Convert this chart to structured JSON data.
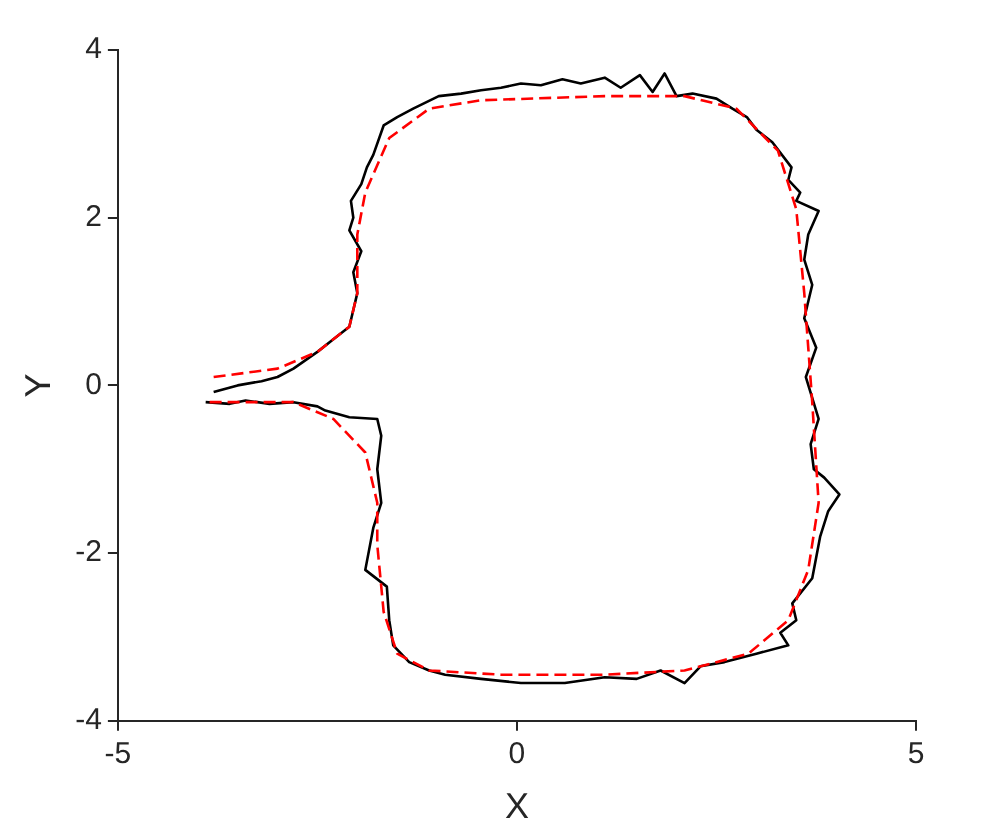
{
  "chart_data": {
    "type": "line",
    "xlabel": "X",
    "ylabel": "Y",
    "xlim": [
      -5,
      5
    ],
    "xticks": [
      -5,
      0,
      5
    ],
    "ylim": [
      -4,
      4
    ],
    "yticks": [
      -4,
      -2,
      0,
      2,
      4
    ],
    "grid": false,
    "legend": false,
    "marker": "none",
    "series": [
      {
        "color": "#000000",
        "line_style": "solid",
        "x": [
          -3.8,
          -3.5,
          -3.2,
          -3.0,
          -2.8,
          -2.5,
          -2.3,
          -2.1,
          -2.0,
          -2.05,
          -1.95,
          -2.1,
          -2.05,
          -2.08,
          -1.95,
          -1.88,
          -1.8,
          -1.67,
          -1.5,
          -1.3,
          -0.98,
          -0.7,
          -0.45,
          -0.2,
          0.05,
          0.3,
          0.57,
          0.8,
          1.1,
          1.3,
          1.54,
          1.7,
          1.85,
          2.0,
          2.2,
          2.5,
          2.7,
          2.88,
          3.0,
          3.2,
          3.44,
          3.4,
          3.55,
          3.5,
          3.78,
          3.65,
          3.6,
          3.7,
          3.6,
          3.75,
          3.62,
          3.78,
          3.68,
          3.72,
          3.85,
          4.04,
          3.9,
          3.8,
          3.7,
          3.45,
          3.5,
          3.3,
          3.4,
          3.0,
          2.6,
          2.3,
          2.1,
          1.8,
          1.5,
          1.1,
          0.6,
          0.05,
          -0.45,
          -0.9,
          -1.1,
          -1.35,
          -1.55,
          -1.6,
          -1.63,
          -1.9,
          -1.8,
          -1.7,
          -1.75,
          -1.7,
          -1.75,
          -2.1,
          -2.4,
          -2.5,
          -2.8,
          -3.1,
          -3.4,
          -3.6,
          -3.9
        ],
        "values": [
          -0.08,
          0.0,
          0.05,
          0.1,
          0.2,
          0.4,
          0.55,
          0.7,
          1.1,
          1.35,
          1.6,
          1.85,
          2.0,
          2.2,
          2.4,
          2.6,
          2.75,
          3.1,
          3.2,
          3.3,
          3.45,
          3.48,
          3.52,
          3.55,
          3.6,
          3.58,
          3.65,
          3.6,
          3.67,
          3.55,
          3.7,
          3.5,
          3.72,
          3.45,
          3.48,
          3.42,
          3.3,
          3.2,
          3.05,
          2.9,
          2.6,
          2.45,
          2.3,
          2.2,
          2.08,
          1.8,
          1.5,
          1.2,
          0.8,
          0.45,
          0.1,
          -0.4,
          -0.7,
          -1.0,
          -1.1,
          -1.3,
          -1.5,
          -1.8,
          -2.3,
          -2.6,
          -2.8,
          -2.95,
          -3.1,
          -3.2,
          -3.3,
          -3.35,
          -3.55,
          -3.4,
          -3.5,
          -3.48,
          -3.55,
          -3.55,
          -3.5,
          -3.45,
          -3.4,
          -3.3,
          -3.1,
          -2.8,
          -2.4,
          -2.2,
          -1.7,
          -1.4,
          -1.0,
          -0.6,
          -0.4,
          -0.38,
          -0.3,
          -0.25,
          -0.2,
          -0.22,
          -0.18,
          -0.22,
          -0.2
        ]
      },
      {
        "color": "#ff0000",
        "line_style": "dashed",
        "x": [
          -3.8,
          -3.0,
          -2.5,
          -2.1,
          -2.0,
          -2.0,
          -1.9,
          -1.6,
          -1.1,
          -0.46,
          1.1,
          2.1,
          2.75,
          3.27,
          3.5,
          3.6,
          3.7,
          3.78,
          3.65,
          3.4,
          2.9,
          2.1,
          1.1,
          -0.2,
          -1.1,
          -1.5,
          -1.67,
          -1.75,
          -1.75,
          -1.9,
          -2.3,
          -2.8,
          -3.9
        ],
        "values": [
          0.1,
          0.2,
          0.4,
          0.7,
          1.1,
          1.8,
          2.3,
          2.95,
          3.3,
          3.4,
          3.45,
          3.45,
          3.3,
          2.8,
          2.1,
          1.1,
          -0.2,
          -1.4,
          -2.2,
          -2.8,
          -3.2,
          -3.4,
          -3.45,
          -3.45,
          -3.4,
          -3.2,
          -2.7,
          -1.9,
          -1.4,
          -0.8,
          -0.4,
          -0.2,
          -0.2
        ]
      }
    ]
  }
}
